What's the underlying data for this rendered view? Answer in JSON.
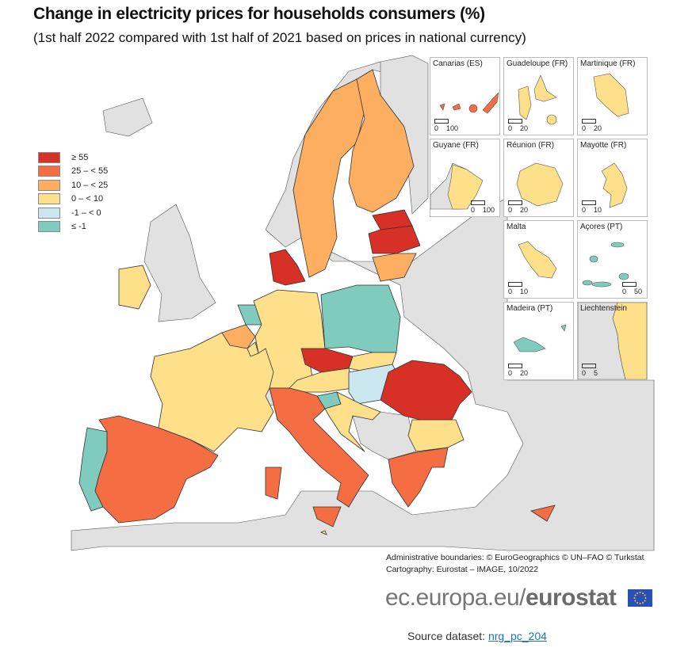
{
  "title": "Change in electricity prices for households consumers (%)",
  "subtitle": "(1st half 2022 compared with 1st half of 2021 based on prices in national currency)",
  "legend": [
    {
      "label": "≥ 55",
      "color": "#d73027"
    },
    {
      "label": "25 – < 55",
      "color": "#f46d43"
    },
    {
      "label": "10 – < 25",
      "color": "#fdae61"
    },
    {
      "label": "0 – < 10",
      "color": "#fee08b"
    },
    {
      "label": "-1 – < 0",
      "color": "#cbe7f0"
    },
    {
      "label": "≤ -1",
      "color": "#7fcbbd"
    }
  ],
  "colors": {
    "no_data_land": "#e1e1e1",
    "sea": "#ffffff",
    "border": "#333333"
  },
  "regions": {
    "DK": 0,
    "EE": 0,
    "LV": 0,
    "CZ": 0,
    "RO": 0,
    "ES": 1,
    "IT": 1,
    "EL": 1,
    "CY": 1,
    "SE": 2,
    "FI": 2,
    "LT": 2,
    "BE": 2,
    "FR": 3,
    "DE": 3,
    "AT": 3,
    "IE": 3,
    "SK": 3,
    "BG": 3,
    "HR": 3,
    "LU": 3,
    "MT": 3,
    "HU": 4,
    "PT": 5,
    "NL": 5,
    "PL": 5,
    "SI": 5
  },
  "insets": [
    {
      "label": "Canarias (ES)",
      "class": 1,
      "scale": [
        "0",
        "100"
      ]
    },
    {
      "label": "Guadeloupe (FR)",
      "class": 3,
      "scale": [
        "0",
        "20"
      ]
    },
    {
      "label": "Martinique (FR)",
      "class": 3,
      "scale": [
        "0",
        "20"
      ]
    },
    {
      "label": "Guyane (FR)",
      "class": 3,
      "scale": [
        "0",
        "100"
      ]
    },
    {
      "label": "Réunion (FR)",
      "class": 3,
      "scale": [
        "0",
        "20"
      ]
    },
    {
      "label": "Mayotte (FR)",
      "class": 3,
      "scale": [
        "0",
        "10"
      ]
    },
    {
      "label": "Malta",
      "class": 3,
      "scale": [
        "0",
        "10"
      ]
    },
    {
      "label": "Açores (PT)",
      "class": 5,
      "scale": [
        "0",
        "50"
      ]
    },
    {
      "label": "Madeira (PT)",
      "class": 5,
      "scale": [
        "0",
        "20"
      ]
    },
    {
      "label": "Liechtenstein",
      "class": null,
      "scale": [
        "0",
        "5"
      ]
    }
  ],
  "credits": {
    "line1": "Administrative boundaries: © EuroGeographics © UN–FAO © Turkstat",
    "line2": "Cartography: Eurostat – IMAGE, 10/2022"
  },
  "brand": {
    "prefix": "ec.europa.eu/",
    "name": "eurostat"
  },
  "source": {
    "label": "Source dataset: ",
    "link": "nrg_pc_204"
  }
}
